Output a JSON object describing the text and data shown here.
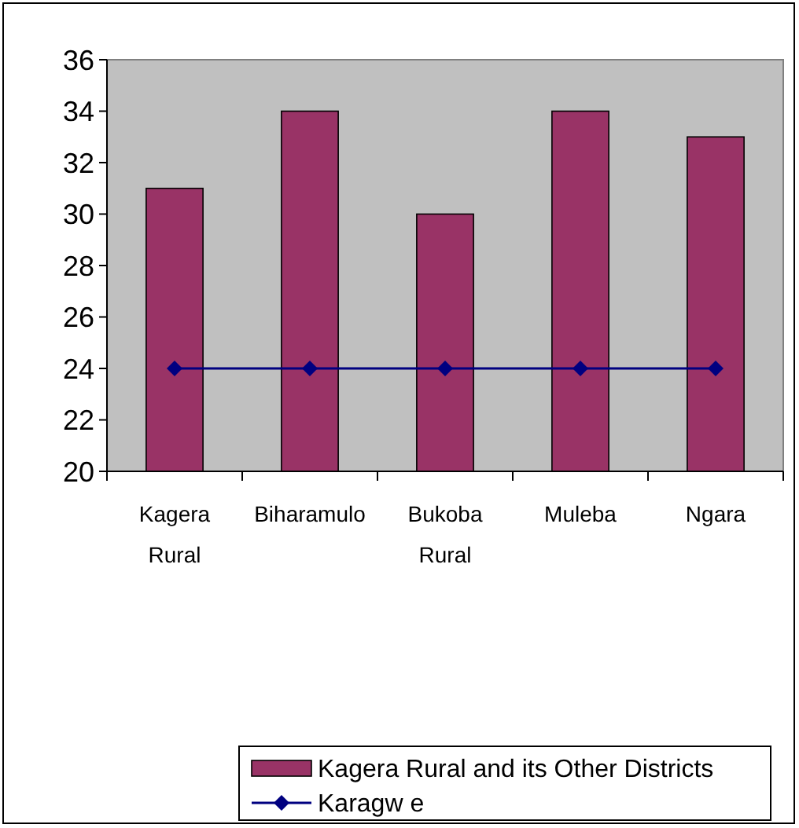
{
  "chart_data": {
    "type": "bar",
    "categories": [
      "Kagera Rural",
      "Biharamulo",
      "Bukoba Rural",
      "Muleba",
      "Ngara"
    ],
    "series": [
      {
        "name": "Kagera Rural and its Other Districts",
        "color": "#993366",
        "values": [
          31,
          34,
          30,
          34,
          33
        ]
      },
      {
        "name": "Karagw e",
        "type": "line",
        "color": "#000080",
        "values": [
          24,
          24,
          24,
          24,
          24
        ]
      }
    ],
    "ylim": [
      20,
      36
    ],
    "yticks": [
      20,
      22,
      24,
      26,
      28,
      30,
      32,
      34,
      36
    ],
    "grid": false,
    "legend": "bottom",
    "marker": "diamond",
    "line_style": "solid"
  }
}
